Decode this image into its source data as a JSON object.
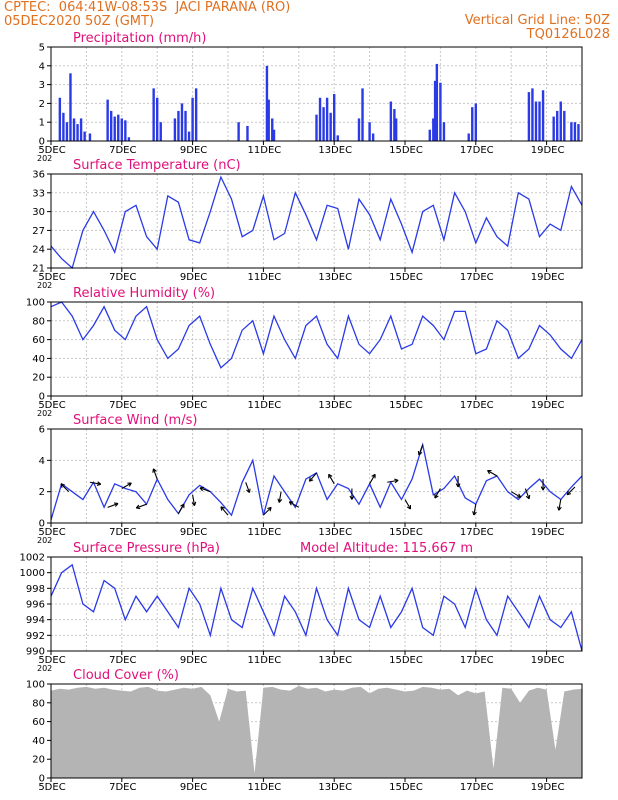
{
  "header": {
    "source": "CPTEC:",
    "location": "064:41W-08:53S  JACI PARANA (RO)",
    "run": "05DEC2020 50Z (GMT)",
    "grid_note": "Vertical Grid Line: 50Z",
    "model_code": "TQ0126L028"
  },
  "x_axis": {
    "ticks": [
      "5DEC",
      "7DEC",
      "9DEC",
      "11DEC",
      "13DEC",
      "15DEC",
      "17DEC",
      "19DEC"
    ],
    "tick_days": [
      5,
      7,
      9,
      11,
      13,
      15,
      17,
      19
    ],
    "year_fragment": "202",
    "range_days": [
      5,
      20
    ]
  },
  "colors": {
    "title": "#e0107a",
    "header": "#e07020",
    "series": "#2a3ae6",
    "cloud": "#b4b4b4",
    "grid": "#c8c8c8",
    "arrow": "#000000"
  },
  "chart_data": [
    {
      "type": "bar",
      "title": "Precipitation (mm/h)",
      "ylim": [
        0,
        5
      ],
      "yticks": [
        0,
        1,
        2,
        3,
        4,
        5
      ],
      "x": [
        5.25,
        5.35,
        5.45,
        5.55,
        5.65,
        5.75,
        5.85,
        5.95,
        6.1,
        6.6,
        6.7,
        6.8,
        6.9,
        7.0,
        7.1,
        7.2,
        7.9,
        8.0,
        8.1,
        8.5,
        8.6,
        8.7,
        8.8,
        8.9,
        9.0,
        9.1,
        10.3,
        10.55,
        11.1,
        11.15,
        11.25,
        11.3,
        12.5,
        12.6,
        12.7,
        12.8,
        12.9,
        13.0,
        13.1,
        13.7,
        13.8,
        14.0,
        14.1,
        14.6,
        14.7,
        14.75,
        15.7,
        15.8,
        15.85,
        15.9,
        16.0,
        16.1,
        16.8,
        16.9,
        17.0,
        18.5,
        18.6,
        18.7,
        18.8,
        18.9,
        19.2,
        19.3,
        19.4,
        19.5,
        19.7,
        19.8,
        19.9
      ],
      "values": [
        2.3,
        1.5,
        1.0,
        3.6,
        1.2,
        0.9,
        1.2,
        0.5,
        0.4,
        2.2,
        1.6,
        1.3,
        1.4,
        1.2,
        1.1,
        0.2,
        2.8,
        2.3,
        1.0,
        1.2,
        1.6,
        2.0,
        1.6,
        0.5,
        2.3,
        2.8,
        1.0,
        0.8,
        4.0,
        2.2,
        1.2,
        0.6,
        1.4,
        2.3,
        1.8,
        2.3,
        1.5,
        2.5,
        0.3,
        1.2,
        2.8,
        1.0,
        0.4,
        2.1,
        1.7,
        1.2,
        0.6,
        1.2,
        3.2,
        4.1,
        3.1,
        1.0,
        0.4,
        1.8,
        2.0,
        2.6,
        2.8,
        2.1,
        2.1,
        2.7,
        1.3,
        1.6,
        2.1,
        1.6,
        1.0,
        1.0,
        0.9
      ]
    },
    {
      "type": "line",
      "title": "Surface Temperature (nC)",
      "ylim": [
        21,
        36
      ],
      "yticks": [
        21,
        24,
        27,
        30,
        33,
        36
      ],
      "x": [
        5.0,
        5.3,
        5.6,
        5.9,
        6.2,
        6.5,
        6.8,
        7.1,
        7.4,
        7.7,
        8.0,
        8.3,
        8.6,
        8.9,
        9.2,
        9.5,
        9.8,
        10.1,
        10.4,
        10.7,
        11.0,
        11.3,
        11.6,
        11.9,
        12.2,
        12.5,
        12.8,
        13.1,
        13.4,
        13.7,
        14.0,
        14.3,
        14.6,
        14.9,
        15.2,
        15.5,
        15.8,
        16.1,
        16.4,
        16.7,
        17.0,
        17.3,
        17.6,
        17.9,
        18.2,
        18.5,
        18.8,
        19.1,
        19.4,
        19.7,
        20.0
      ],
      "values": [
        24.5,
        22.5,
        21.0,
        27.0,
        30.0,
        27.0,
        23.5,
        30.0,
        31.0,
        26.0,
        24.0,
        32.5,
        31.5,
        25.5,
        25.0,
        30.0,
        35.5,
        32.0,
        26.0,
        27.0,
        32.5,
        25.5,
        26.5,
        33.0,
        29.5,
        25.5,
        31.0,
        30.5,
        24.0,
        32.0,
        29.5,
        25.5,
        32.0,
        28.0,
        23.5,
        30.0,
        31.0,
        25.5,
        33.0,
        30.0,
        25.0,
        29.0,
        26.0,
        24.5,
        33.0,
        32.0,
        26.0,
        28.0,
        27.0,
        34.0,
        31.0
      ]
    },
    {
      "type": "line",
      "title": "Relative Humidity (%)",
      "ylim": [
        0,
        100
      ],
      "yticks": [
        0,
        20,
        40,
        60,
        80,
        100
      ],
      "x": [
        5.0,
        5.3,
        5.6,
        5.9,
        6.2,
        6.5,
        6.8,
        7.1,
        7.4,
        7.7,
        8.0,
        8.3,
        8.6,
        8.9,
        9.2,
        9.5,
        9.8,
        10.1,
        10.4,
        10.7,
        11.0,
        11.3,
        11.6,
        11.9,
        12.2,
        12.5,
        12.8,
        13.1,
        13.4,
        13.7,
        14.0,
        14.3,
        14.6,
        14.9,
        15.2,
        15.5,
        15.8,
        16.1,
        16.4,
        16.7,
        17.0,
        17.3,
        17.6,
        17.9,
        18.2,
        18.5,
        18.8,
        19.1,
        19.4,
        19.7,
        20.0
      ],
      "values": [
        95.0,
        100.0,
        85.0,
        60.0,
        75.0,
        95.0,
        70.0,
        60.0,
        85.0,
        95.0,
        60.0,
        40.0,
        50.0,
        75.0,
        85.0,
        55.0,
        30.0,
        40.0,
        70.0,
        80.0,
        45.0,
        85.0,
        60.0,
        40.0,
        75.0,
        85.0,
        55.0,
        40.0,
        85.0,
        55.0,
        45.0,
        60.0,
        85.0,
        50.0,
        55.0,
        85.0,
        75.0,
        60.0,
        90.0,
        90.0,
        45.0,
        50.0,
        80.0,
        70.0,
        40.0,
        50.0,
        75.0,
        65.0,
        50.0,
        40.0,
        60.0
      ]
    },
    {
      "type": "line",
      "title": "Surface Wind (m/s)",
      "ylim": [
        0,
        6
      ],
      "yticks": [
        0,
        2,
        4,
        6
      ],
      "x": [
        5.0,
        5.3,
        5.6,
        5.9,
        6.2,
        6.5,
        6.8,
        7.1,
        7.4,
        7.7,
        8.0,
        8.3,
        8.6,
        8.9,
        9.2,
        9.5,
        9.8,
        10.1,
        10.4,
        10.7,
        11.0,
        11.3,
        11.6,
        11.9,
        12.2,
        12.5,
        12.8,
        13.1,
        13.4,
        13.7,
        14.0,
        14.3,
        14.6,
        14.9,
        15.2,
        15.5,
        15.8,
        16.1,
        16.4,
        16.7,
        17.0,
        17.3,
        17.6,
        17.9,
        18.2,
        18.5,
        18.8,
        19.1,
        19.4,
        19.7,
        20.0
      ],
      "values": [
        0.2,
        2.5,
        2.0,
        1.5,
        2.6,
        1.0,
        2.5,
        2.2,
        2.0,
        1.2,
        2.8,
        1.5,
        0.6,
        1.8,
        2.4,
        2.0,
        1.3,
        0.5,
        2.6,
        4.0,
        0.5,
        3.0,
        2.0,
        1.0,
        2.8,
        3.2,
        1.5,
        2.5,
        2.2,
        1.2,
        2.5,
        1.0,
        2.6,
        1.5,
        2.8,
        5.0,
        1.8,
        2.2,
        3.0,
        1.6,
        1.2,
        2.7,
        3.0,
        2.0,
        1.5,
        2.2,
        2.8,
        2.0,
        1.5,
        2.3,
        3.0
      ],
      "wind_vectors": [
        {
          "x": 5.5,
          "angle": 135
        },
        {
          "x": 6.1,
          "angle": -10
        },
        {
          "x": 6.6,
          "angle": 20
        },
        {
          "x": 7.0,
          "angle": 30
        },
        {
          "x": 7.7,
          "angle": 200
        },
        {
          "x": 8.0,
          "angle": 110
        },
        {
          "x": 8.6,
          "angle": 60
        },
        {
          "x": 9.0,
          "angle": -80
        },
        {
          "x": 9.5,
          "angle": 160
        },
        {
          "x": 10.0,
          "angle": 130
        },
        {
          "x": 10.5,
          "angle": -70
        },
        {
          "x": 11.0,
          "angle": 45
        },
        {
          "x": 11.5,
          "angle": -100
        },
        {
          "x": 12.0,
          "angle": 150
        },
        {
          "x": 12.5,
          "angle": -130
        },
        {
          "x": 13.0,
          "angle": 120
        },
        {
          "x": 13.5,
          "angle": -90
        },
        {
          "x": 14.0,
          "angle": 60
        },
        {
          "x": 14.5,
          "angle": 10
        },
        {
          "x": 15.0,
          "angle": -60
        },
        {
          "x": 15.5,
          "angle": -110
        },
        {
          "x": 16.0,
          "angle": -120
        },
        {
          "x": 16.5,
          "angle": -90
        },
        {
          "x": 17.0,
          "angle": -100
        },
        {
          "x": 17.6,
          "angle": 150
        },
        {
          "x": 18.0,
          "angle": -30
        },
        {
          "x": 18.4,
          "angle": -70
        },
        {
          "x": 18.9,
          "angle": -90
        },
        {
          "x": 19.4,
          "angle": -100
        },
        {
          "x": 19.8,
          "angle": -135
        }
      ]
    },
    {
      "type": "line",
      "title": "Surface Pressure (hPa)",
      "annotation": "Model Altitude: 115.667  m",
      "ylim": [
        990,
        1002
      ],
      "yticks": [
        990,
        992,
        994,
        996,
        998,
        1000,
        1002
      ],
      "x": [
        5.0,
        5.3,
        5.6,
        5.9,
        6.2,
        6.5,
        6.8,
        7.1,
        7.4,
        7.7,
        8.0,
        8.3,
        8.6,
        8.9,
        9.2,
        9.5,
        9.8,
        10.1,
        10.4,
        10.7,
        11.0,
        11.3,
        11.6,
        11.9,
        12.2,
        12.5,
        12.8,
        13.1,
        13.4,
        13.7,
        14.0,
        14.3,
        14.6,
        14.9,
        15.2,
        15.5,
        15.8,
        16.1,
        16.4,
        16.7,
        17.0,
        17.3,
        17.6,
        17.9,
        18.2,
        18.5,
        18.8,
        19.1,
        19.4,
        19.7,
        20.0
      ],
      "values": [
        997.0,
        1000.0,
        1001.0,
        996.0,
        995.0,
        999.0,
        998.0,
        994.0,
        997.0,
        995.0,
        997.0,
        995.0,
        993.0,
        998.0,
        996.0,
        992.0,
        998.0,
        994.0,
        993.0,
        998.0,
        995.0,
        992.0,
        997.0,
        995.0,
        992.0,
        998.0,
        994.0,
        992.0,
        998.0,
        994.0,
        993.0,
        997.0,
        993.0,
        995.0,
        998.0,
        993.0,
        992.0,
        997.0,
        996.0,
        993.0,
        998.0,
        994.0,
        992.0,
        997.0,
        995.0,
        993.0,
        997.0,
        994.0,
        993.0,
        995.0,
        990.0
      ]
    },
    {
      "type": "area",
      "title": "Cloud Cover (%)",
      "ylim": [
        0,
        100
      ],
      "yticks": [
        0,
        20,
        40,
        60,
        80,
        100
      ],
      "x": [
        5.0,
        5.25,
        5.5,
        5.75,
        6.0,
        6.25,
        6.5,
        6.75,
        7.0,
        7.25,
        7.5,
        7.75,
        8.0,
        8.25,
        8.5,
        8.75,
        9.0,
        9.25,
        9.5,
        9.75,
        10.0,
        10.25,
        10.5,
        10.75,
        11.0,
        11.25,
        11.5,
        11.75,
        12.0,
        12.25,
        12.5,
        12.75,
        13.0,
        13.25,
        13.5,
        13.75,
        14.0,
        14.25,
        14.5,
        14.75,
        15.0,
        15.25,
        15.5,
        15.75,
        16.0,
        16.25,
        16.5,
        16.75,
        17.0,
        17.25,
        17.5,
        17.75,
        18.0,
        18.25,
        18.5,
        18.75,
        19.0,
        19.25,
        19.5,
        19.75,
        20.0
      ],
      "values": [
        93.0,
        95.0,
        94.0,
        96.0,
        97.0,
        95.0,
        96.0,
        94.0,
        93.0,
        92.0,
        96.0,
        97.0,
        93.0,
        92.0,
        94.0,
        96.0,
        95.0,
        97.0,
        88.0,
        60.0,
        95.0,
        92.0,
        93.0,
        5.0,
        96.0,
        97.0,
        94.0,
        93.0,
        98.0,
        95.0,
        96.0,
        92.0,
        94.0,
        93.0,
        96.0,
        97.0,
        90.0,
        95.0,
        96.0,
        94.0,
        92.0,
        93.0,
        97.0,
        96.0,
        94.0,
        95.0,
        88.0,
        93.0,
        90.0,
        92.0,
        10.0,
        96.0,
        95.0,
        80.0,
        93.0,
        96.0,
        94.0,
        30.0,
        92.0,
        94.0,
        95.0
      ]
    }
  ]
}
